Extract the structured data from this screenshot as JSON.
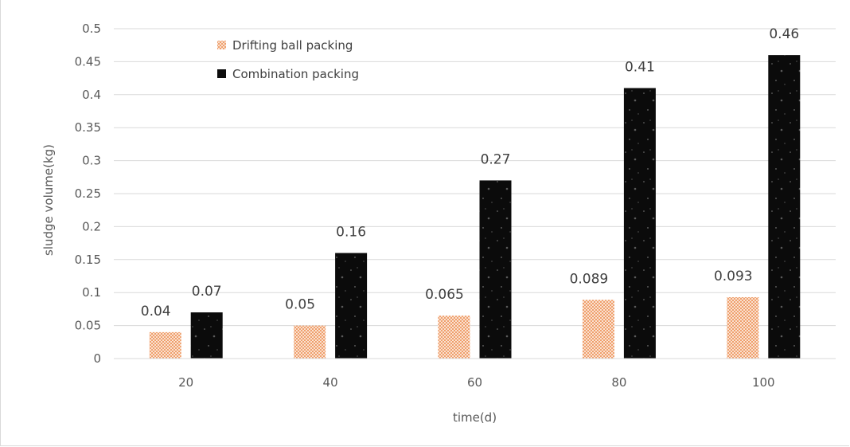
{
  "chart_data": {
    "type": "bar",
    "categories": [
      "20",
      "40",
      "60",
      "80",
      "100"
    ],
    "series": [
      {
        "name": "Drifting ball packing",
        "values": [
          0.04,
          0.05,
          0.065,
          0.089,
          0.093
        ],
        "labels": [
          "0.04",
          "0.05",
          "0.065",
          "0.089",
          "0.093"
        ],
        "color": "#f4b183"
      },
      {
        "name": "Combination packing",
        "values": [
          0.07,
          0.16,
          0.27,
          0.41,
          0.46
        ],
        "labels": [
          "0.07",
          "0.16",
          "0.27",
          "0.41",
          "0.46"
        ],
        "color": "#0d0d0d"
      }
    ],
    "xlabel": "time(d)",
    "ylabel": "sludge volume(kg)",
    "ylim": [
      0,
      0.5
    ],
    "yticks": [
      "0",
      "0.05",
      "0.1",
      "0.15",
      "0.2",
      "0.25",
      "0.3",
      "0.35",
      "0.4",
      "0.45",
      "0.5"
    ],
    "grid": true,
    "legend_position": "top-left"
  }
}
